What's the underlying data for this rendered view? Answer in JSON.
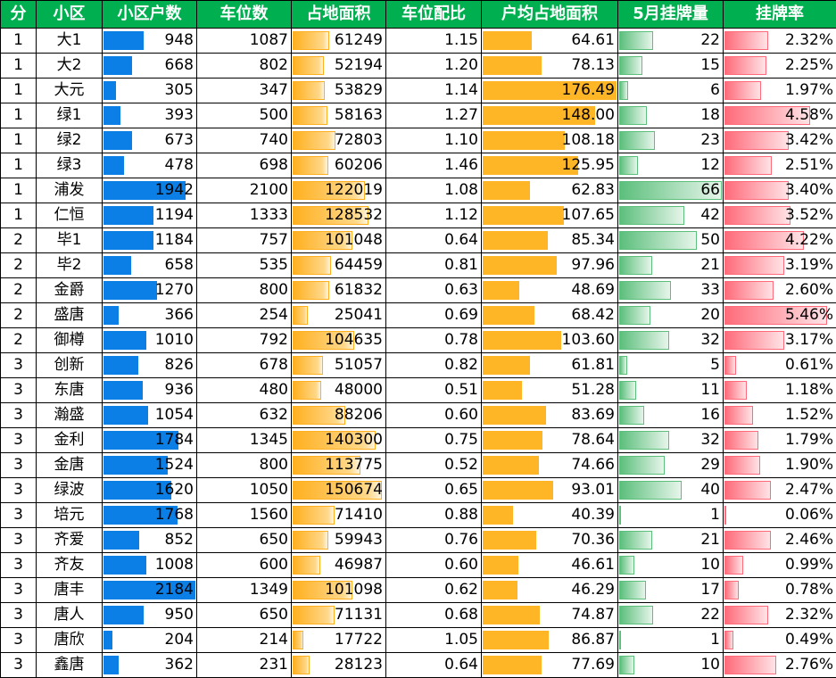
{
  "headers": [
    "分",
    "小区",
    "小区户数",
    "车位数",
    "占地面积",
    "车位配比",
    "户均占地面积",
    "5月挂牌量",
    "挂牌率"
  ],
  "bar_maxima": {
    "households": 2184,
    "area": 150674,
    "avg_area": 176.49,
    "listings": 66,
    "rate": 5.46
  },
  "colors": {
    "header_bg": "#00b050",
    "header_text": "#ffffff",
    "households_bar": "#0b7fe5",
    "area_bar": "#ffb020",
    "avg_area_bar": "#ffb626",
    "listings_bar": "#5cbf7c",
    "rate_bar": "#ff6b7a"
  },
  "rows": [
    {
      "district": "1",
      "name": "大1",
      "households": "948",
      "parking": "1087",
      "area": "61249",
      "ratio": "1.15",
      "avg_area": "64.61",
      "listings": "22",
      "rate": "2.32%"
    },
    {
      "district": "1",
      "name": "大2",
      "households": "668",
      "parking": "802",
      "area": "52194",
      "ratio": "1.20",
      "avg_area": "78.13",
      "listings": "15",
      "rate": "2.25%"
    },
    {
      "district": "1",
      "name": "大元",
      "households": "305",
      "parking": "347",
      "area": "53829",
      "ratio": "1.14",
      "avg_area": "176.49",
      "listings": "6",
      "rate": "1.97%"
    },
    {
      "district": "1",
      "name": "绿1",
      "households": "393",
      "parking": "500",
      "area": "58163",
      "ratio": "1.27",
      "avg_area": "148.00",
      "listings": "18",
      "rate": "4.58%"
    },
    {
      "district": "1",
      "name": "绿2",
      "households": "673",
      "parking": "740",
      "area": "72803",
      "ratio": "1.10",
      "avg_area": "108.18",
      "listings": "23",
      "rate": "3.42%"
    },
    {
      "district": "1",
      "name": "绿3",
      "households": "478",
      "parking": "698",
      "area": "60206",
      "ratio": "1.46",
      "avg_area": "125.95",
      "listings": "12",
      "rate": "2.51%"
    },
    {
      "district": "1",
      "name": "浦发",
      "households": "1942",
      "parking": "2100",
      "area": "122019",
      "ratio": "1.08",
      "avg_area": "62.83",
      "listings": "66",
      "rate": "3.40%"
    },
    {
      "district": "1",
      "name": "仁恒",
      "households": "1194",
      "parking": "1333",
      "area": "128532",
      "ratio": "1.12",
      "avg_area": "107.65",
      "listings": "42",
      "rate": "3.52%"
    },
    {
      "district": "2",
      "name": "毕1",
      "households": "1184",
      "parking": "757",
      "area": "101048",
      "ratio": "0.64",
      "avg_area": "85.34",
      "listings": "50",
      "rate": "4.22%"
    },
    {
      "district": "2",
      "name": "毕2",
      "households": "658",
      "parking": "535",
      "area": "64459",
      "ratio": "0.81",
      "avg_area": "97.96",
      "listings": "21",
      "rate": "3.19%"
    },
    {
      "district": "2",
      "name": "金爵",
      "households": "1270",
      "parking": "800",
      "area": "61832",
      "ratio": "0.63",
      "avg_area": "48.69",
      "listings": "33",
      "rate": "2.60%"
    },
    {
      "district": "2",
      "name": "盛唐",
      "households": "366",
      "parking": "254",
      "area": "25041",
      "ratio": "0.69",
      "avg_area": "68.42",
      "listings": "20",
      "rate": "5.46%"
    },
    {
      "district": "2",
      "name": "御樽",
      "households": "1010",
      "parking": "792",
      "area": "104635",
      "ratio": "0.78",
      "avg_area": "103.60",
      "listings": "32",
      "rate": "3.17%"
    },
    {
      "district": "3",
      "name": "创新",
      "households": "826",
      "parking": "678",
      "area": "51057",
      "ratio": "0.82",
      "avg_area": "61.81",
      "listings": "5",
      "rate": "0.61%"
    },
    {
      "district": "3",
      "name": "东唐",
      "households": "936",
      "parking": "480",
      "area": "48000",
      "ratio": "0.51",
      "avg_area": "51.28",
      "listings": "11",
      "rate": "1.18%"
    },
    {
      "district": "3",
      "name": "瀚盛",
      "households": "1054",
      "parking": "632",
      "area": "88206",
      "ratio": "0.60",
      "avg_area": "83.69",
      "listings": "16",
      "rate": "1.52%"
    },
    {
      "district": "3",
      "name": "金利",
      "households": "1784",
      "parking": "1345",
      "area": "140300",
      "ratio": "0.75",
      "avg_area": "78.64",
      "listings": "32",
      "rate": "1.79%"
    },
    {
      "district": "3",
      "name": "金唐",
      "households": "1524",
      "parking": "800",
      "area": "113775",
      "ratio": "0.52",
      "avg_area": "74.66",
      "listings": "29",
      "rate": "1.90%"
    },
    {
      "district": "3",
      "name": "绿波",
      "households": "1620",
      "parking": "1050",
      "area": "150674",
      "ratio": "0.65",
      "avg_area": "93.01",
      "listings": "40",
      "rate": "2.47%"
    },
    {
      "district": "3",
      "name": "培元",
      "households": "1768",
      "parking": "1560",
      "area": "71410",
      "ratio": "0.88",
      "avg_area": "40.39",
      "listings": "1",
      "rate": "0.06%"
    },
    {
      "district": "3",
      "name": "齐爱",
      "households": "852",
      "parking": "650",
      "area": "59943",
      "ratio": "0.76",
      "avg_area": "70.36",
      "listings": "21",
      "rate": "2.46%"
    },
    {
      "district": "3",
      "name": "齐友",
      "households": "1008",
      "parking": "600",
      "area": "46987",
      "ratio": "0.60",
      "avg_area": "46.61",
      "listings": "10",
      "rate": "0.99%"
    },
    {
      "district": "3",
      "name": "唐丰",
      "households": "2184",
      "parking": "1349",
      "area": "101098",
      "ratio": "0.62",
      "avg_area": "46.29",
      "listings": "17",
      "rate": "0.78%"
    },
    {
      "district": "3",
      "name": "唐人",
      "households": "950",
      "parking": "650",
      "area": "71131",
      "ratio": "0.68",
      "avg_area": "74.87",
      "listings": "22",
      "rate": "2.32%"
    },
    {
      "district": "3",
      "name": "唐欣",
      "households": "204",
      "parking": "214",
      "area": "17722",
      "ratio": "1.05",
      "avg_area": "86.87",
      "listings": "1",
      "rate": "0.49%"
    },
    {
      "district": "3",
      "name": "鑫唐",
      "households": "362",
      "parking": "231",
      "area": "28123",
      "ratio": "0.64",
      "avg_area": "77.69",
      "listings": "10",
      "rate": "2.76%"
    }
  ]
}
